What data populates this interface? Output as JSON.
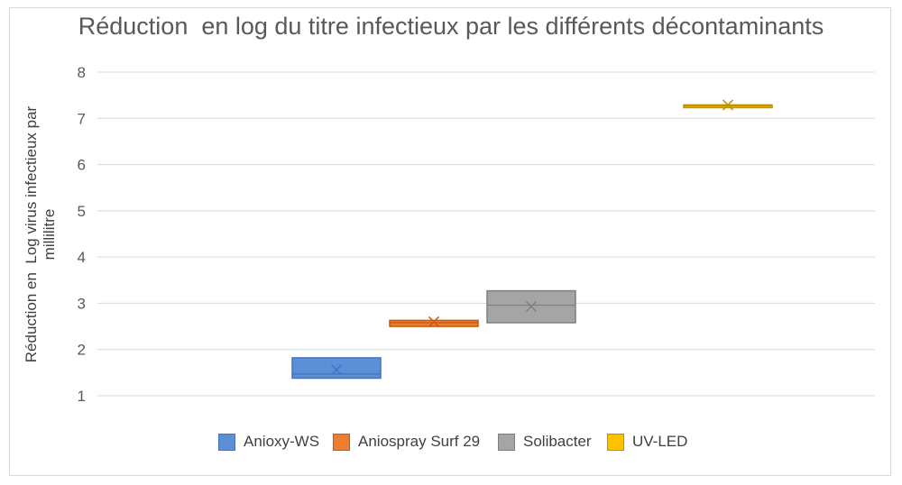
{
  "chart_data": {
    "type": "box",
    "title": "Réduction  en log du titre infectieux par les différents décontaminants",
    "ylabel": "Réduction en  Log virus infectieux par millilitre",
    "xlabel": "",
    "ylim": [
      1,
      8
    ],
    "yticks": [
      "1",
      "2",
      "3",
      "4",
      "5",
      "6",
      "7",
      "8"
    ],
    "grid": true,
    "legend_position": "bottom",
    "series": [
      {
        "name": "Anioxy-WS",
        "color": "#4472c4",
        "fill": "#5b8fd6",
        "q1": 1.38,
        "median": 1.47,
        "q3": 1.82,
        "mean": 1.56
      },
      {
        "name": "Aniospray Surf 29",
        "color": "#c55a11",
        "fill": "#ed7d31",
        "q1": 2.5,
        "median": 2.58,
        "q3": 2.63,
        "mean": 2.6
      },
      {
        "name": "Solibacter",
        "color": "#7f7f7f",
        "fill": "#a5a5a5",
        "q1": 2.58,
        "median": 2.96,
        "q3": 3.27,
        "mean": 2.93
      },
      {
        "name": "UV-LED",
        "color": "#bf9000",
        "fill": "#ffc000",
        "q1": 7.25,
        "median": 7.27,
        "q3": 7.29,
        "mean": 7.29
      }
    ]
  }
}
